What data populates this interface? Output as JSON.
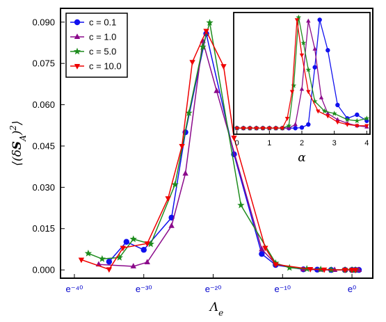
{
  "chart_data": [
    {
      "type": "line",
      "xlabel": "Λ_e",
      "ylabel": "⟨(δS_A)²⟩",
      "xscale": "log (natural, e^n)",
      "xticks": [
        "e⁻⁴⁰",
        "e⁻³⁰",
        "e⁻²⁰",
        "e⁻¹⁰",
        "e⁰"
      ],
      "ytick_labels": [
        "0.000",
        "0.015",
        "0.030",
        "0.045",
        "0.060",
        "0.075",
        "0.090"
      ],
      "xlim_exponent": [
        -42,
        3
      ],
      "ylim": [
        -0.003,
        0.095
      ],
      "legend_position": "top-left",
      "series": [
        {
          "name": "c = 0.1",
          "color": "#1010ee",
          "marker": "circle",
          "x_exponent": [
            -35,
            -32.5,
            -30,
            -26,
            -24,
            -21,
            -17,
            -13,
            -11,
            -7,
            -5,
            -3,
            -1,
            0,
            0.5,
            1
          ],
          "values": [
            0.003,
            0.0102,
            0.0073,
            0.019,
            0.05,
            0.0858,
            0.042,
            0.0058,
            0.0018,
            0.0002,
            0.0001,
            0.0,
            0.0,
            0.0,
            0.0,
            0.0
          ]
        },
        {
          "name": "c = 1.0",
          "color": "#8b0a8b",
          "marker": "triangle-up",
          "x_exponent": [
            -36.5,
            -31.5,
            -29.5,
            -26,
            -24,
            -21.5,
            -19.5,
            -13,
            -11,
            -7,
            -4.5,
            -2.5,
            -1,
            0,
            0.5,
            1
          ],
          "values": [
            0.002,
            0.0013,
            0.0028,
            0.016,
            0.035,
            0.0832,
            0.065,
            0.0075,
            0.0022,
            0.0002,
            0.0001,
            0.0,
            0.0,
            0.0,
            0.0,
            0.0
          ]
        },
        {
          "name": "c = 5.0",
          "color": "#1e8c1e",
          "marker": "star",
          "x_exponent": [
            -38,
            -36,
            -33.5,
            -31.5,
            -29,
            -25.5,
            -23.5,
            -21.5,
            -20.5,
            -16,
            -11,
            -9,
            -6.5,
            -4.5,
            -3,
            -1,
            0,
            0.5
          ],
          "values": [
            0.006,
            0.004,
            0.0045,
            0.0112,
            0.0094,
            0.031,
            0.057,
            0.081,
            0.0898,
            0.0235,
            0.0025,
            0.0008,
            0.0004,
            0.0002,
            0.0,
            0.0,
            0.0,
            0.0
          ]
        },
        {
          "name": "c = 10.0",
          "color": "#ee0000",
          "marker": "triangle-down",
          "x_exponent": [
            -39,
            -35,
            -33,
            -29.5,
            -26.5,
            -24.5,
            -23,
            -21,
            -18.5,
            -17,
            -12.5,
            -11,
            -6,
            -4,
            -1,
            0,
            0.5
          ],
          "values": [
            0.0037,
            0.0002,
            0.008,
            0.0096,
            0.026,
            0.045,
            0.0755,
            0.0868,
            0.074,
            0.048,
            0.008,
            0.002,
            0.0003,
            0.0001,
            0.0,
            0.0,
            0.0
          ]
        }
      ]
    },
    {
      "type": "line",
      "xlabel": "α",
      "xticks": [
        "0",
        "1",
        "2",
        "3",
        "4"
      ],
      "xlim": [
        -0.1,
        4.1
      ],
      "ylim": [
        -0.005,
        0.095
      ],
      "series": [
        {
          "name": "c = 0.1",
          "color": "#1010ee",
          "marker": "circle",
          "x": [
            0.0,
            0.2,
            0.4,
            0.6,
            0.8,
            1.0,
            1.2,
            1.4,
            1.6,
            1.8,
            2.0,
            2.2,
            2.4,
            2.55,
            2.8,
            3.1,
            3.4,
            3.7,
            4.0
          ],
          "values": [
            0.0,
            0.0,
            0.0,
            0.0,
            0.0,
            0.0,
            0.0,
            0.0,
            0.0,
            0.0,
            0.0005,
            0.003,
            0.05,
            0.089,
            0.064,
            0.019,
            0.008,
            0.011,
            0.006
          ]
        },
        {
          "name": "c = 1.0",
          "color": "#8b0a8b",
          "marker": "triangle-up",
          "x": [
            0.0,
            0.2,
            0.4,
            0.6,
            0.8,
            1.0,
            1.2,
            1.4,
            1.6,
            1.8,
            2.0,
            2.2,
            2.4,
            2.6,
            2.8,
            3.1,
            3.4,
            3.7,
            4.0
          ],
          "values": [
            0.0,
            0.0,
            0.0,
            0.0,
            0.0,
            0.0,
            0.0,
            0.0,
            0.0,
            0.003,
            0.032,
            0.088,
            0.065,
            0.025,
            0.012,
            0.007,
            0.004,
            0.002,
            0.001
          ]
        },
        {
          "name": "c = 5.0",
          "color": "#1e8c1e",
          "marker": "star",
          "x": [
            0.0,
            0.2,
            0.4,
            0.6,
            0.8,
            1.0,
            1.2,
            1.4,
            1.6,
            1.75,
            1.9,
            2.05,
            2.2,
            2.4,
            2.7,
            3.0,
            3.4,
            3.7,
            4.0
          ],
          "values": [
            0.0,
            0.0,
            0.0,
            0.0,
            0.0,
            0.0,
            0.0,
            0.0,
            0.002,
            0.035,
            0.091,
            0.07,
            0.048,
            0.022,
            0.014,
            0.012,
            0.007,
            0.006,
            0.008
          ]
        },
        {
          "name": "c = 10.0",
          "color": "#ee0000",
          "marker": "triangle-down",
          "x": [
            0.0,
            0.2,
            0.4,
            0.6,
            0.8,
            1.0,
            1.2,
            1.4,
            1.55,
            1.7,
            1.85,
            2.0,
            2.2,
            2.5,
            2.8,
            3.1,
            3.4,
            3.7,
            4.0
          ],
          "values": [
            0.0,
            0.0,
            0.0,
            0.0,
            0.0,
            0.0,
            0.0,
            0.0,
            0.008,
            0.03,
            0.089,
            0.06,
            0.03,
            0.014,
            0.01,
            0.005,
            0.003,
            0.002,
            0.002
          ]
        }
      ]
    }
  ]
}
